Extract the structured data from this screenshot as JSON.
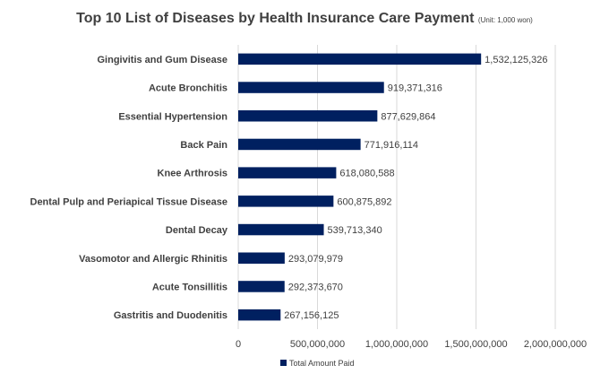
{
  "chart_data": {
    "type": "bar",
    "orientation": "horizontal",
    "title": "Top 10 List of Diseases by Health Insurance Care Payment",
    "subtitle": "(Unit: 1,000 won)",
    "xlabel": "",
    "ylabel": "",
    "xlim": [
      0,
      2000000000
    ],
    "xticks": [
      0,
      500000000,
      1000000000,
      1500000000,
      2000000000
    ],
    "xtick_labels": [
      "0",
      "500,000,000",
      "1,000,000,000",
      "1,500,000,000",
      "2,000,000,000"
    ],
    "grid": true,
    "legend_position": "bottom",
    "categories": [
      "Gingivitis and Gum Disease",
      "Acute Bronchitis",
      "Essential Hypertension",
      "Back Pain",
      "Knee Arthrosis",
      "Dental Pulp and Periapical Tissue Disease",
      "Dental Decay",
      "Vasomotor and Allergic Rhinitis",
      "Acute Tonsillitis",
      "Gastritis and Duodenitis"
    ],
    "series": [
      {
        "name": "Total Amount Paid",
        "color": "#002060",
        "values": [
          1532125326,
          919371316,
          877629864,
          771916114,
          618080588,
          600875892,
          539713340,
          293079979,
          292373670,
          267156125
        ],
        "value_labels": [
          "1,532,125,326",
          "919,371,316",
          "877,629,864",
          "771,916,114",
          "618,080,588",
          "600,875,892",
          "539,713,340",
          "293,079,979",
          "292,373,670",
          "267,156,125"
        ]
      }
    ]
  }
}
